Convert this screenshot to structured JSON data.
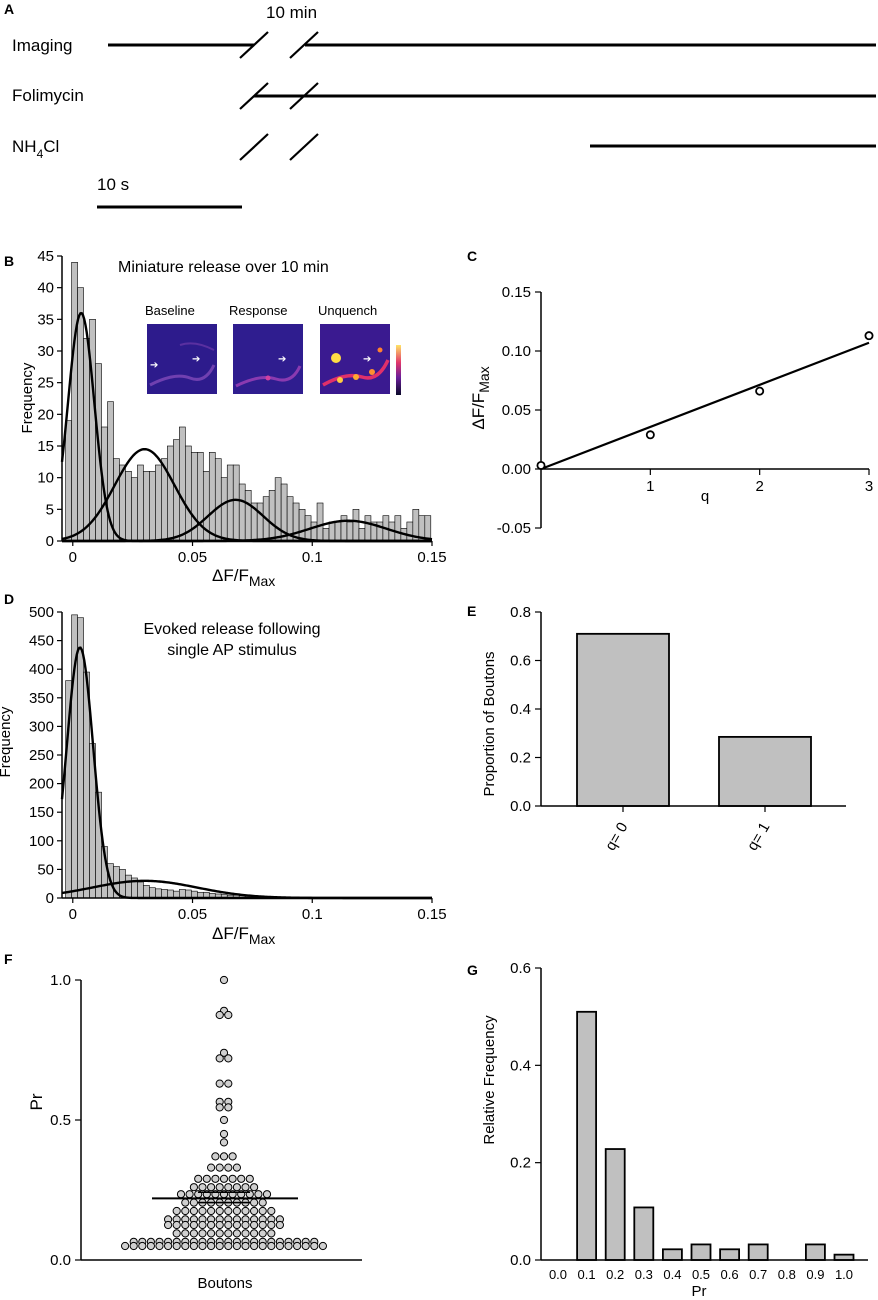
{
  "panel_letters": [
    "A",
    "B",
    "C",
    "D",
    "E",
    "F",
    "G"
  ],
  "colors": {
    "bar_fill": "#c0c0c0",
    "line": "#000000",
    "point_fill": "#d0d0d0",
    "heat_dark": "#2b1a8a",
    "heat_hot": "#ffdd44"
  },
  "panel_a": {
    "gap_label": "10 min",
    "rows": [
      {
        "label": "Imaging"
      },
      {
        "label": "Folimycin"
      },
      {
        "label_main": "NH",
        "label_sub": "4",
        "label_tail": "Cl"
      }
    ],
    "scale_label": "10 s"
  },
  "chart_data": [
    {
      "id": "B",
      "type": "bar",
      "title": "Miniature release over 10 min",
      "xlabel_main": "ΔF/F",
      "xlabel_sub": "Max",
      "ylabel": "Frequency",
      "xlim": [
        -0.0045,
        0.15
      ],
      "ylim": [
        0,
        45
      ],
      "xticks": [
        {
          "v": 0,
          "t": "0"
        },
        {
          "v": 0.05,
          "t": "0.05"
        },
        {
          "v": 0.1,
          "t": "0.1"
        },
        {
          "v": 0.15,
          "t": "0.15"
        }
      ],
      "yticks": [
        0,
        5,
        10,
        15,
        20,
        25,
        30,
        35,
        40,
        45
      ],
      "bin_start": -0.003,
      "bin_width": 0.0025,
      "counts": [
        19,
        44,
        40,
        32,
        35,
        28,
        18,
        22,
        13,
        12,
        11,
        10,
        12,
        11,
        11,
        12,
        13,
        15,
        16,
        18,
        15,
        14,
        14,
        11,
        14,
        13,
        10,
        12,
        12,
        9,
        8,
        6,
        6,
        7,
        8,
        10,
        9,
        7,
        6,
        5,
        4,
        3,
        6,
        2,
        3,
        3,
        4,
        3,
        5,
        2,
        4,
        3,
        3,
        4,
        3,
        4,
        2,
        3,
        5,
        4,
        4
      ],
      "gaussians": [
        {
          "amp": 36,
          "mu": 0.0035,
          "sigma": 0.0055
        },
        {
          "amp": 14.5,
          "mu": 0.03,
          "sigma": 0.0125
        },
        {
          "amp": 6.5,
          "mu": 0.068,
          "sigma": 0.0115
        },
        {
          "amp": 3.2,
          "mu": 0.115,
          "sigma": 0.016
        }
      ],
      "inset_labels": [
        "Baseline",
        "Response",
        "Unquench"
      ]
    },
    {
      "id": "C",
      "type": "line",
      "xlabel": "q",
      "ylabel_main": "ΔF/F",
      "ylabel_sub": "Max",
      "xlim": [
        0,
        3
      ],
      "ylim": [
        -0.05,
        0.15
      ],
      "xticks": [
        1,
        2,
        3
      ],
      "yticks": [
        {
          "v": -0.05,
          "t": "-0.05"
        },
        {
          "v": 0,
          "t": "0.00"
        },
        {
          "v": 0.05,
          "t": "0.05"
        },
        {
          "v": 0.1,
          "t": "0.10"
        },
        {
          "v": 0.15,
          "t": "0.15"
        }
      ],
      "points": [
        {
          "x": 0,
          "y": 0.003
        },
        {
          "x": 1,
          "y": 0.029
        },
        {
          "x": 2,
          "y": 0.066
        },
        {
          "x": 3,
          "y": 0.113
        }
      ],
      "fit": [
        {
          "x": 0,
          "y": 0.0
        },
        {
          "x": 3,
          "y": 0.107
        }
      ]
    },
    {
      "id": "D",
      "type": "bar",
      "title_lines": [
        "Evoked release following",
        "single AP stimulus"
      ],
      "xlabel_main": "ΔF/F",
      "xlabel_sub": "Max",
      "ylabel": "Frequency",
      "xlim": [
        -0.0045,
        0.15
      ],
      "ylim": [
        0,
        500
      ],
      "xticks": [
        {
          "v": 0,
          "t": "0"
        },
        {
          "v": 0.05,
          "t": "0.05"
        },
        {
          "v": 0.1,
          "t": "0.1"
        },
        {
          "v": 0.15,
          "t": "0.15"
        }
      ],
      "yticks": [
        0,
        50,
        100,
        150,
        200,
        250,
        300,
        350,
        400,
        450,
        500
      ],
      "bin_start": -0.003,
      "bin_width": 0.0025,
      "counts": [
        380,
        495,
        490,
        395,
        270,
        185,
        90,
        60,
        55,
        50,
        40,
        35,
        28,
        22,
        18,
        16,
        15,
        14,
        12,
        15,
        14,
        12,
        10,
        10,
        8,
        7,
        6,
        5,
        5,
        4,
        3,
        3,
        3,
        2,
        2,
        2,
        2,
        2,
        2,
        1,
        1,
        1,
        1,
        1,
        1,
        1,
        1,
        1,
        0,
        0,
        0,
        0,
        0,
        0,
        0,
        0,
        0,
        0,
        0,
        0,
        0
      ],
      "gaussians": [
        {
          "amp": 438,
          "mu": 0.003,
          "sigma": 0.0055
        },
        {
          "amp": 30,
          "mu": 0.03,
          "sigma": 0.022
        }
      ]
    },
    {
      "id": "E",
      "type": "bar",
      "categories": [
        "q= 0",
        "q= 1"
      ],
      "values": [
        0.71,
        0.285
      ],
      "ylabel": "Proportion of Boutons",
      "ylim": [
        0,
        0.8
      ],
      "yticks": [
        {
          "v": 0,
          "t": "0.0"
        },
        {
          "v": 0.2,
          "t": "0.2"
        },
        {
          "v": 0.4,
          "t": "0.4"
        },
        {
          "v": 0.6,
          "t": "0.6"
        },
        {
          "v": 0.8,
          "t": "0.8"
        }
      ]
    },
    {
      "id": "F",
      "type": "scatter",
      "xlabel": "Boutons",
      "ylabel": "Pr",
      "ylim": [
        0,
        1
      ],
      "yticks": [
        {
          "v": 0,
          "t": "0.0"
        },
        {
          "v": 0.5,
          "t": "0.5"
        },
        {
          "v": 1,
          "t": "1.0"
        }
      ],
      "mean": 0.22,
      "sem_low": 0.205,
      "sem_high": 0.242,
      "groups": [
        {
          "y": 1.0,
          "n": 1
        },
        {
          "y": 0.89,
          "n": 1
        },
        {
          "y": 0.875,
          "n": 2
        },
        {
          "y": 0.74,
          "n": 1
        },
        {
          "y": 0.72,
          "n": 2
        },
        {
          "y": 0.63,
          "n": 2
        },
        {
          "y": 0.565,
          "n": 2
        },
        {
          "y": 0.545,
          "n": 2
        },
        {
          "y": 0.5,
          "n": 1
        },
        {
          "y": 0.45,
          "n": 1
        },
        {
          "y": 0.42,
          "n": 1
        },
        {
          "y": 0.37,
          "n": 3
        },
        {
          "y": 0.33,
          "n": 4
        },
        {
          "y": 0.29,
          "n": 7
        },
        {
          "y": 0.26,
          "n": 8
        },
        {
          "y": 0.235,
          "n": 11
        },
        {
          "y": 0.205,
          "n": 10
        },
        {
          "y": 0.175,
          "n": 12
        },
        {
          "y": 0.145,
          "n": 14
        },
        {
          "y": 0.125,
          "n": 14
        },
        {
          "y": 0.095,
          "n": 12
        },
        {
          "y": 0.065,
          "n": 22
        },
        {
          "y": 0.05,
          "n": 24
        }
      ]
    },
    {
      "id": "G",
      "type": "bar",
      "categories": [
        "0.0",
        "0.1",
        "0.2",
        "0.3",
        "0.4",
        "0.5",
        "0.6",
        "0.7",
        "0.8",
        "0.9",
        "1.0"
      ],
      "values": [
        0,
        0.51,
        0.228,
        0.108,
        0.022,
        0.032,
        0.022,
        0.032,
        0,
        0.032,
        0.011
      ],
      "xlabel": "Pr",
      "ylabel": "Relative Frequency",
      "ylim": [
        0,
        0.6
      ],
      "yticks": [
        {
          "v": 0,
          "t": "0.0"
        },
        {
          "v": 0.2,
          "t": "0.2"
        },
        {
          "v": 0.4,
          "t": "0.4"
        },
        {
          "v": 0.6,
          "t": "0.6"
        }
      ]
    }
  ]
}
